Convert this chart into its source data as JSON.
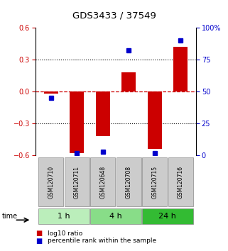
{
  "title": "GDS3433 / 37549",
  "samples": [
    "GSM120710",
    "GSM120711",
    "GSM120648",
    "GSM120708",
    "GSM120715",
    "GSM120716"
  ],
  "log10_ratio": [
    -0.02,
    -0.58,
    -0.42,
    0.18,
    -0.54,
    0.42
  ],
  "percentile_rank": [
    45,
    2,
    3,
    82,
    2,
    90
  ],
  "groups": [
    {
      "label": "1 h",
      "indices": [
        0,
        1
      ],
      "color": "#bbeebb"
    },
    {
      "label": "4 h",
      "indices": [
        2,
        3
      ],
      "color": "#88dd88"
    },
    {
      "label": "24 h",
      "indices": [
        4,
        5
      ],
      "color": "#33bb33"
    }
  ],
  "ylim_left": [
    -0.6,
    0.6
  ],
  "ylim_right": [
    0,
    100
  ],
  "yticks_left": [
    -0.6,
    -0.3,
    0,
    0.3,
    0.6
  ],
  "yticks_right": [
    0,
    25,
    50,
    75,
    100
  ],
  "bar_color_red": "#cc0000",
  "bar_color_blue": "#0000cc",
  "zero_line_color": "#cc0000",
  "background_color": "#ffffff",
  "bar_width": 0.55,
  "sample_box_color": "#cccccc",
  "sample_box_edge": "#888888"
}
